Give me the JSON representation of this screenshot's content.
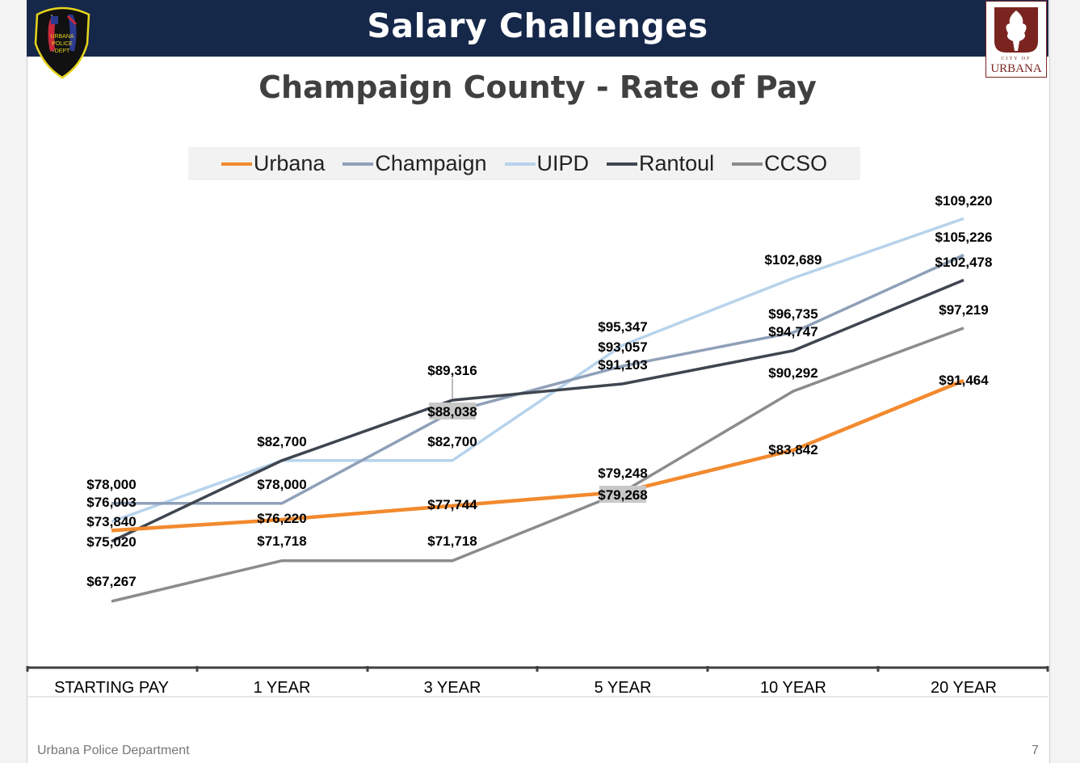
{
  "header": {
    "title": "Salary Challenges",
    "left_logo_text": "URBANA POLICE DEPT",
    "right_logo_text": "CITY OF URBANA"
  },
  "footer": {
    "org": "Urbana Police Department",
    "page": "7"
  },
  "colors": {
    "header_bg": "#16284a",
    "Urbana": "#f28a2e",
    "Champaign": "#8fa0b8",
    "UIPD": "#b7d3ec",
    "Rantoul": "#3f4650",
    "CCSO": "#8c8c8c"
  },
  "chart_data": {
    "type": "line",
    "title": "Champaign County - Rate of Pay",
    "categories": [
      "STARTING PAY",
      "1 YEAR",
      "3 YEAR",
      "5 YEAR",
      "10 YEAR",
      "20 YEAR"
    ],
    "legend_position": "top",
    "grid": false,
    "ylim": [
      60000,
      112000
    ],
    "series": [
      {
        "name": "Urbana",
        "values": [
          75020,
          76220,
          77744,
          79268,
          83842,
          91464
        ],
        "labels": [
          "$75,020",
          "$76,220",
          "$77,744",
          "$79,268",
          "$83,842",
          "$91,464"
        ]
      },
      {
        "name": "Champaign",
        "values": [
          78000,
          78000,
          88038,
          93057,
          96735,
          105226
        ],
        "labels": [
          "$78,000",
          "$78,000",
          "$88,038",
          "$93,057",
          "$96,735",
          "$105,226"
        ]
      },
      {
        "name": "UIPD",
        "values": [
          76003,
          82700,
          82700,
          95347,
          102689,
          109220
        ],
        "labels": [
          "$76,003",
          "",
          "$82,700",
          "$95,347",
          "$102,689",
          "$109,220"
        ]
      },
      {
        "name": "Rantoul",
        "values": [
          73840,
          82700,
          89316,
          91103,
          94747,
          102478
        ],
        "labels": [
          "$73,840",
          "$82,700",
          "$89,316",
          "$91,103",
          "$94,747",
          "$102,478"
        ]
      },
      {
        "name": "CCSO",
        "values": [
          67267,
          71718,
          71718,
          79248,
          90292,
          97219
        ],
        "labels": [
          "$67,267",
          "$71,718",
          "$71,718",
          "$79,248",
          "$90,292",
          "$97,219"
        ]
      }
    ]
  }
}
